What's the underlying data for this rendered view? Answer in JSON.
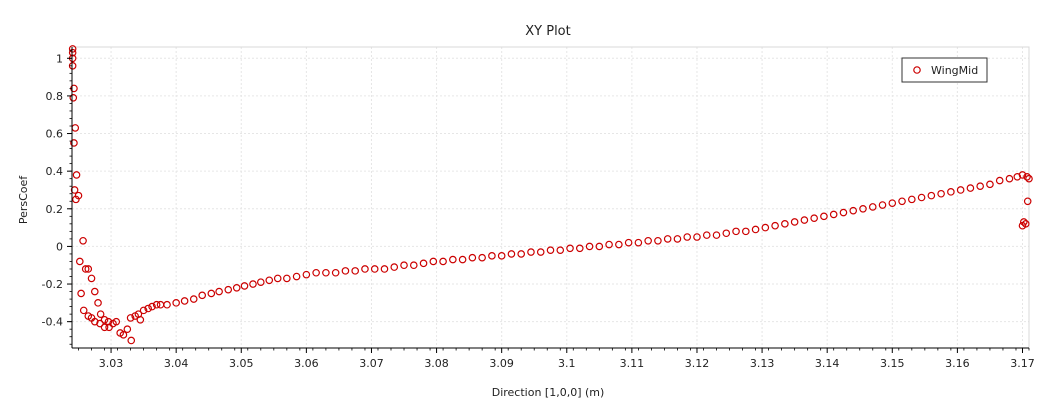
{
  "chart_data": {
    "type": "scatter",
    "title": "XY Plot",
    "xlabel": "Direction [1,0,0] (m)",
    "ylabel": "PersCoef",
    "xlim": [
      3.024,
      3.171
    ],
    "ylim": [
      -0.54,
      1.06
    ],
    "x_ticks": [
      3.03,
      3.04,
      3.05,
      3.06,
      3.07,
      3.08,
      3.09,
      3.1,
      3.11,
      3.12,
      3.13,
      3.14,
      3.15,
      3.16,
      3.17
    ],
    "x_tick_labels": [
      "3.03",
      "3.04",
      "3.05",
      "3.06",
      "3.07",
      "3.08",
      "3.09",
      "3.1",
      "3.11",
      "3.12",
      "3.13",
      "3.14",
      "3.15",
      "3.16",
      "3.17"
    ],
    "y_ticks": [
      1,
      0.8,
      0.6,
      0.4,
      0.2,
      0,
      -0.2,
      -0.4
    ],
    "y_tick_labels": [
      "1",
      "0.8",
      "0.6",
      "0.4",
      "0.2",
      "0",
      "-0.2",
      "-0.4"
    ],
    "grid": true,
    "legend_position": "top-right",
    "marker_color": "#cc0000",
    "series": [
      {
        "name": "WingMid",
        "points": [
          [
            3.0241,
            1.05
          ],
          [
            3.0241,
            1.03
          ],
          [
            3.0241,
            1.0
          ],
          [
            3.0241,
            0.96
          ],
          [
            3.0243,
            0.84
          ],
          [
            3.0242,
            0.79
          ],
          [
            3.0245,
            0.63
          ],
          [
            3.0243,
            0.55
          ],
          [
            3.0247,
            0.38
          ],
          [
            3.0244,
            0.3
          ],
          [
            3.0246,
            0.25
          ],
          [
            3.025,
            0.27
          ],
          [
            3.0257,
            0.03
          ],
          [
            3.0252,
            -0.08
          ],
          [
            3.0261,
            -0.12
          ],
          [
            3.0265,
            -0.12
          ],
          [
            3.0254,
            -0.25
          ],
          [
            3.027,
            -0.17
          ],
          [
            3.0275,
            -0.24
          ],
          [
            3.0258,
            -0.34
          ],
          [
            3.0265,
            -0.37
          ],
          [
            3.027,
            -0.38
          ],
          [
            3.028,
            -0.3
          ],
          [
            3.0284,
            -0.36
          ],
          [
            3.029,
            -0.39
          ],
          [
            3.0296,
            -0.4
          ],
          [
            3.0275,
            -0.4
          ],
          [
            3.0283,
            -0.41
          ],
          [
            3.029,
            -0.43
          ],
          [
            3.0297,
            -0.43
          ],
          [
            3.0303,
            -0.41
          ],
          [
            3.0308,
            -0.4
          ],
          [
            3.0314,
            -0.46
          ],
          [
            3.0319,
            -0.47
          ],
          [
            3.0325,
            -0.44
          ],
          [
            3.033,
            -0.38
          ],
          [
            3.0337,
            -0.37
          ],
          [
            3.0342,
            -0.36
          ],
          [
            3.035,
            -0.34
          ],
          [
            3.0357,
            -0.33
          ],
          [
            3.0345,
            -0.39
          ],
          [
            3.0331,
            -0.5
          ],
          [
            3.0363,
            -0.32
          ],
          [
            3.037,
            -0.31
          ],
          [
            3.0376,
            -0.31
          ],
          [
            3.0386,
            -0.31
          ],
          [
            3.04,
            -0.3
          ],
          [
            3.0413,
            -0.29
          ],
          [
            3.0427,
            -0.28
          ],
          [
            3.044,
            -0.26
          ],
          [
            3.0454,
            -0.25
          ],
          [
            3.0466,
            -0.24
          ],
          [
            3.048,
            -0.23
          ],
          [
            3.0493,
            -0.22
          ],
          [
            3.0505,
            -0.21
          ],
          [
            3.0518,
            -0.2
          ],
          [
            3.053,
            -0.19
          ],
          [
            3.0543,
            -0.18
          ],
          [
            3.0556,
            -0.17
          ],
          [
            3.057,
            -0.17
          ],
          [
            3.0585,
            -0.16
          ],
          [
            3.06,
            -0.15
          ],
          [
            3.0615,
            -0.14
          ],
          [
            3.063,
            -0.14
          ],
          [
            3.0645,
            -0.14
          ],
          [
            3.066,
            -0.13
          ],
          [
            3.0675,
            -0.13
          ],
          [
            3.069,
            -0.12
          ],
          [
            3.0705,
            -0.12
          ],
          [
            3.072,
            -0.12
          ],
          [
            3.0735,
            -0.11
          ],
          [
            3.075,
            -0.1
          ],
          [
            3.0765,
            -0.1
          ],
          [
            3.078,
            -0.09
          ],
          [
            3.0795,
            -0.08
          ],
          [
            3.081,
            -0.08
          ],
          [
            3.0825,
            -0.07
          ],
          [
            3.084,
            -0.07
          ],
          [
            3.0855,
            -0.06
          ],
          [
            3.087,
            -0.06
          ],
          [
            3.0885,
            -0.05
          ],
          [
            3.09,
            -0.05
          ],
          [
            3.0915,
            -0.04
          ],
          [
            3.093,
            -0.04
          ],
          [
            3.0945,
            -0.03
          ],
          [
            3.096,
            -0.03
          ],
          [
            3.0975,
            -0.02
          ],
          [
            3.099,
            -0.02
          ],
          [
            3.1005,
            -0.01
          ],
          [
            3.102,
            -0.01
          ],
          [
            3.1035,
            0.0
          ],
          [
            3.105,
            0.0
          ],
          [
            3.1065,
            0.01
          ],
          [
            3.108,
            0.01
          ],
          [
            3.1095,
            0.02
          ],
          [
            3.111,
            0.02
          ],
          [
            3.1125,
            0.03
          ],
          [
            3.114,
            0.03
          ],
          [
            3.1155,
            0.04
          ],
          [
            3.117,
            0.04
          ],
          [
            3.1185,
            0.05
          ],
          [
            3.12,
            0.05
          ],
          [
            3.1215,
            0.06
          ],
          [
            3.123,
            0.06
          ],
          [
            3.1245,
            0.07
          ],
          [
            3.126,
            0.08
          ],
          [
            3.1275,
            0.08
          ],
          [
            3.129,
            0.09
          ],
          [
            3.1305,
            0.1
          ],
          [
            3.132,
            0.11
          ],
          [
            3.1335,
            0.12
          ],
          [
            3.135,
            0.13
          ],
          [
            3.1365,
            0.14
          ],
          [
            3.138,
            0.15
          ],
          [
            3.1395,
            0.16
          ],
          [
            3.141,
            0.17
          ],
          [
            3.1425,
            0.18
          ],
          [
            3.144,
            0.19
          ],
          [
            3.1455,
            0.2
          ],
          [
            3.147,
            0.21
          ],
          [
            3.1485,
            0.22
          ],
          [
            3.15,
            0.23
          ],
          [
            3.1515,
            0.24
          ],
          [
            3.153,
            0.25
          ],
          [
            3.1545,
            0.26
          ],
          [
            3.156,
            0.27
          ],
          [
            3.1575,
            0.28
          ],
          [
            3.159,
            0.29
          ],
          [
            3.1605,
            0.3
          ],
          [
            3.162,
            0.31
          ],
          [
            3.1635,
            0.32
          ],
          [
            3.165,
            0.33
          ],
          [
            3.1665,
            0.35
          ],
          [
            3.168,
            0.36
          ],
          [
            3.1692,
            0.37
          ],
          [
            3.17,
            0.38
          ],
          [
            3.1707,
            0.37
          ],
          [
            3.171,
            0.36
          ],
          [
            3.1708,
            0.24
          ],
          [
            3.1702,
            0.13
          ],
          [
            3.1705,
            0.12
          ],
          [
            3.17,
            0.11
          ]
        ]
      }
    ]
  },
  "legend": {
    "label": "WingMid"
  }
}
